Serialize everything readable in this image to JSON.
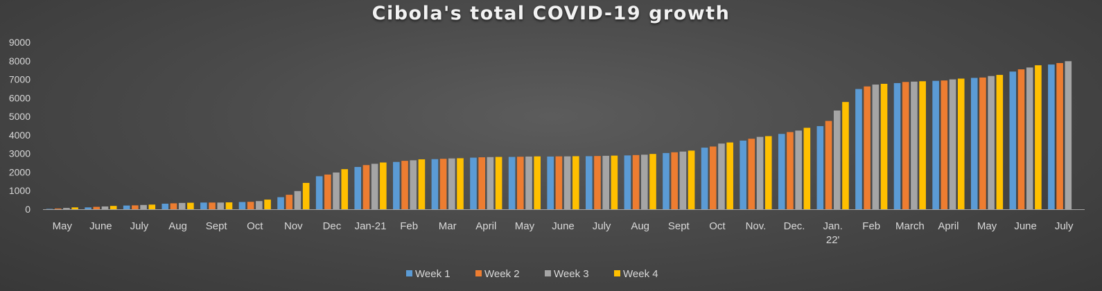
{
  "chart_data": {
    "type": "bar",
    "title": "Cibola's total COVID-19 growth",
    "xlabel": "",
    "ylabel": "",
    "ylim": [
      0,
      9000
    ],
    "yticks": [
      0,
      1000,
      2000,
      3000,
      4000,
      5000,
      6000,
      7000,
      8000,
      9000
    ],
    "grid": false,
    "legend_position": "bottom",
    "categories": [
      "May",
      "June",
      "July",
      "Aug",
      "Sept",
      "Oct",
      "Nov",
      "Dec",
      "Jan-21",
      "Feb",
      "Mar",
      "April",
      "May",
      "June",
      "July",
      "Aug",
      "Sept",
      "Oct",
      "Nov.",
      "Dec.",
      "Jan. 22'",
      "Feb",
      "March",
      "April",
      "May",
      "June",
      "July"
    ],
    "series": [
      {
        "name": "Week 1",
        "color": "#5b9bd5",
        "values": [
          20,
          100,
          200,
          300,
          360,
          390,
          650,
          1780,
          2280,
          2550,
          2700,
          2780,
          2820,
          2840,
          2860,
          2900,
          3030,
          3320,
          3700,
          4060,
          4480,
          6480,
          6800,
          6920,
          7080,
          7420,
          7800
        ]
      },
      {
        "name": "Week 2",
        "color": "#ed7d31",
        "values": [
          40,
          130,
          210,
          320,
          360,
          400,
          780,
          1870,
          2380,
          2610,
          2720,
          2800,
          2830,
          2850,
          2870,
          2920,
          3070,
          3380,
          3800,
          4160,
          4760,
          6620,
          6860,
          6940,
          7100,
          7540,
          7880
        ]
      },
      {
        "name": "Week 3",
        "color": "#a5a5a5",
        "values": [
          70,
          150,
          230,
          340,
          360,
          440,
          980,
          1980,
          2450,
          2640,
          2740,
          2810,
          2840,
          2850,
          2880,
          2940,
          3110,
          3540,
          3900,
          4240,
          5320,
          6720,
          6880,
          7000,
          7180,
          7640,
          7980
        ]
      },
      {
        "name": "Week 4",
        "color": "#ffc000",
        "values": [
          100,
          180,
          250,
          350,
          370,
          520,
          1420,
          2160,
          2520,
          2690,
          2750,
          2820,
          2850,
          2860,
          2890,
          2980,
          3160,
          3600,
          3940,
          4390,
          5780,
          6760,
          6900,
          7040,
          7240,
          7760,
          null
        ]
      }
    ]
  }
}
